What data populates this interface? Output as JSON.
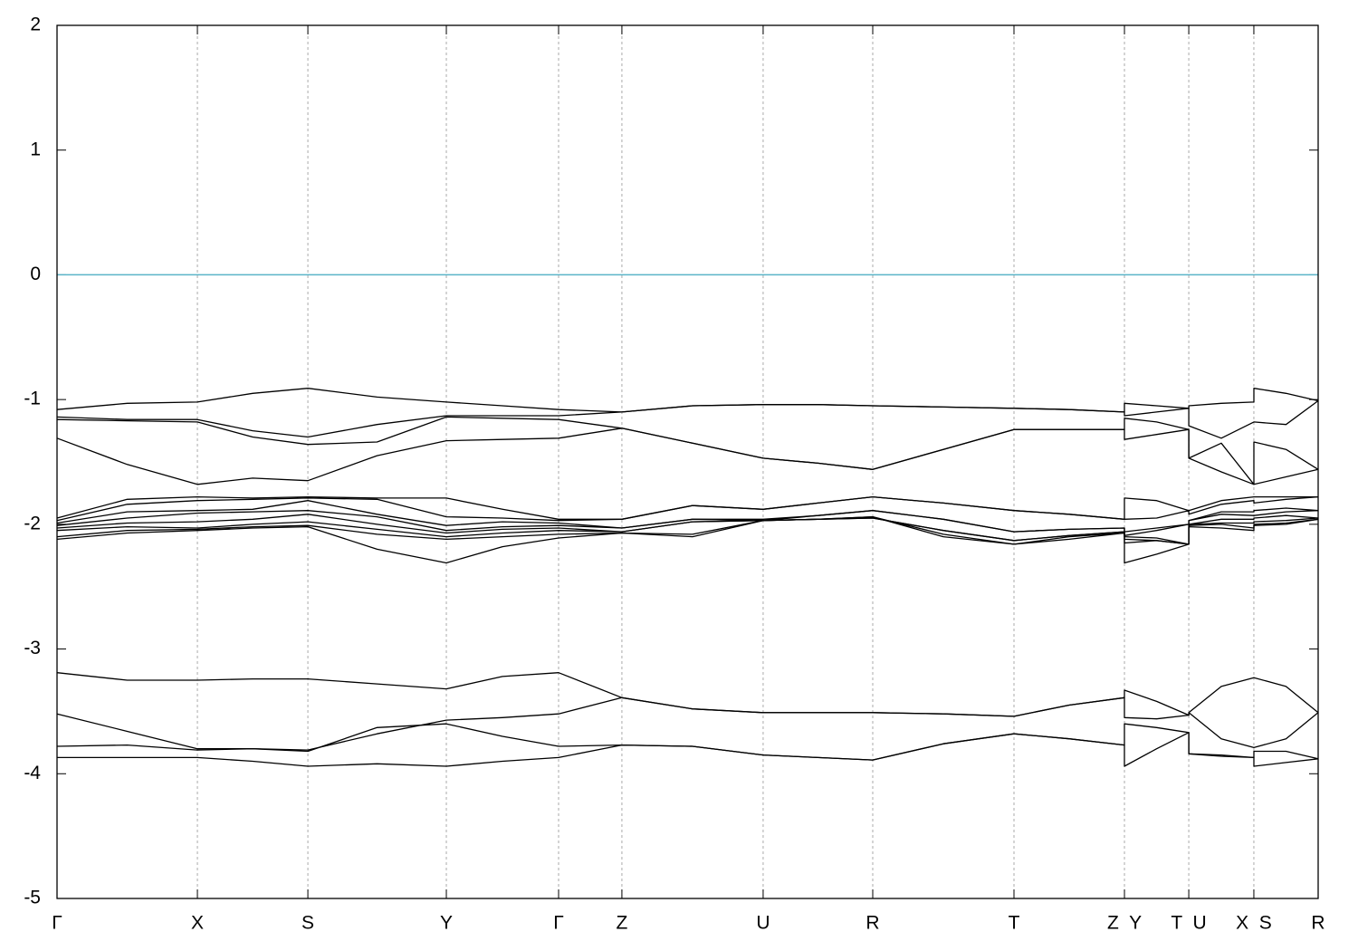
{
  "chart_data": {
    "type": "line",
    "x": [
      0,
      0.556,
      1.113,
      1.551,
      1.989,
      2.538,
      3.087,
      3.532,
      3.977,
      4.479,
      5.039,
      5.599,
      6.034,
      6.468,
      7.028,
      7.588,
      8.026,
      8.464,
      8.464,
      8.719,
      8.974,
      8.974,
      9.232,
      9.49,
      9.49,
      9.745,
      10
    ],
    "xlim": [
      0,
      10
    ],
    "xticks": [
      {
        "value": 0,
        "label": "Γ"
      },
      {
        "value": 1.113,
        "label": "X"
      },
      {
        "value": 1.989,
        "label": "S"
      },
      {
        "value": 3.087,
        "label": "Y"
      },
      {
        "value": 3.977,
        "label": "Γ"
      },
      {
        "value": 4.479,
        "label": "Z"
      },
      {
        "value": 5.599,
        "label": "U"
      },
      {
        "value": 6.468,
        "label": "R"
      },
      {
        "value": 7.588,
        "label": "T"
      },
      {
        "value": 8.464,
        "label": "Z  Y"
      },
      {
        "value": 8.974,
        "label": "T  U"
      },
      {
        "value": 9.49,
        "label": "X  S"
      },
      {
        "value": 10,
        "label": "R"
      }
    ],
    "ylim": [
      -5,
      2
    ],
    "yticks": [
      -5,
      -4,
      -3,
      -2,
      -1,
      0,
      1,
      2
    ],
    "xgrid": true,
    "hline": {
      "value": 0,
      "color": "#5ab4c8"
    },
    "series": [
      {
        "color": "#000000",
        "values": [
          -1.08,
          -1.03,
          -1.02,
          -0.95,
          -0.91,
          -0.98,
          -1.02,
          -1.05,
          -1.08,
          -1.1,
          -1.05,
          -1.04,
          -1.04,
          -1.05,
          -1.06,
          -1.07,
          -1.08,
          -1.1,
          -1.03,
          -1.05,
          -1.07,
          -1.05,
          -1.03,
          -1.02,
          -0.91,
          -0.95,
          -1.01
        ]
      },
      {
        "color": "#000000",
        "values": [
          -1.14,
          -1.16,
          -1.16,
          -1.25,
          -1.3,
          -1.2,
          -1.13,
          -1.13,
          -1.13,
          -1.1,
          -1.05,
          -1.04,
          -1.04,
          -1.05,
          -1.06,
          -1.07,
          -1.08,
          -1.1,
          -1.13,
          -1.1,
          -1.07,
          -1.21,
          -1.31,
          -1.18,
          -1.18,
          -1.2,
          -1.01
        ]
      },
      {
        "color": "#000000",
        "values": [
          -1.16,
          -1.17,
          -1.18,
          -1.3,
          -1.36,
          -1.34,
          -1.14,
          -1.15,
          -1.16,
          -1.23,
          -1.35,
          -1.47,
          -1.51,
          -1.56,
          -1.4,
          -1.24,
          -1.24,
          -1.24,
          -1.15,
          -1.18,
          -1.24,
          -1.47,
          -1.35,
          -1.68,
          -1.34,
          -1.4,
          -1.56
        ]
      },
      {
        "color": "#000000",
        "values": [
          -1.31,
          -1.52,
          -1.68,
          -1.63,
          -1.65,
          -1.45,
          -1.33,
          -1.32,
          -1.31,
          -1.23,
          -1.35,
          -1.47,
          -1.51,
          -1.56,
          -1.4,
          -1.24,
          -1.24,
          -1.24,
          -1.32,
          -1.28,
          -1.24,
          -1.47,
          -1.58,
          -1.68,
          -1.68,
          -1.62,
          -1.56
        ]
      },
      {
        "color": "#000000",
        "values": [
          -1.95,
          -1.8,
          -1.78,
          -1.79,
          -1.78,
          -1.79,
          -1.79,
          -1.88,
          -1.96,
          -1.96,
          -1.85,
          -1.88,
          -1.83,
          -1.78,
          -1.83,
          -1.89,
          -1.92,
          -1.96,
          -1.79,
          -1.81,
          -1.89,
          -1.89,
          -1.81,
          -1.78,
          -1.78,
          -1.78,
          -1.78
        ]
      },
      {
        "color": "#000000",
        "values": [
          -1.97,
          -1.84,
          -1.81,
          -1.8,
          -1.79,
          -1.8,
          -1.94,
          -1.95,
          -1.97,
          -1.96,
          -1.85,
          -1.88,
          -1.83,
          -1.78,
          -1.83,
          -1.89,
          -1.92,
          -1.96,
          -1.96,
          -1.95,
          -1.89,
          -1.92,
          -1.84,
          -1.81,
          -1.83,
          -1.8,
          -1.78
        ]
      },
      {
        "color": "#000000",
        "values": [
          -1.99,
          -1.9,
          -1.89,
          -1.88,
          -1.81,
          -1.92,
          -2.01,
          -1.98,
          -1.99,
          -2.03,
          -1.96,
          -1.96,
          -1.93,
          -1.89,
          -1.96,
          -2.06,
          -2.04,
          -2.03,
          -2.06,
          -2.03,
          -2.0,
          -1.97,
          -1.9,
          -1.9,
          -1.89,
          -1.87,
          -1.89
        ]
      },
      {
        "color": "#000000",
        "values": [
          -2.01,
          -1.95,
          -1.91,
          -1.9,
          -1.89,
          -1.94,
          -2.05,
          -2.02,
          -2.01,
          -2.03,
          -1.96,
          -1.97,
          -1.93,
          -1.89,
          -1.96,
          -2.06,
          -2.04,
          -2.03,
          -2.09,
          -2.05,
          -2.0,
          -1.97,
          -1.92,
          -1.93,
          -1.93,
          -1.9,
          -1.89
        ]
      },
      {
        "color": "#000000",
        "values": [
          -2.03,
          -1.99,
          -1.98,
          -1.96,
          -1.92,
          -2.0,
          -2.07,
          -2.04,
          -2.03,
          -2.06,
          -1.98,
          -1.97,
          -1.96,
          -1.95,
          -2.05,
          -2.13,
          -2.09,
          -2.06,
          -2.1,
          -2.11,
          -2.16,
          -2.0,
          -1.96,
          -1.96,
          -1.95,
          -1.93,
          -1.95
        ]
      },
      {
        "color": "#000000",
        "values": [
          -2.05,
          -2.02,
          -2.03,
          -2.0,
          -1.98,
          -2.04,
          -2.1,
          -2.07,
          -2.05,
          -2.06,
          -1.98,
          -1.97,
          -1.96,
          -1.95,
          -2.05,
          -2.13,
          -2.09,
          -2.06,
          -2.12,
          -2.13,
          -2.16,
          -2.0,
          -1.99,
          -1.99,
          -1.98,
          -1.97,
          -1.95
        ]
      },
      {
        "color": "#000000",
        "values": [
          -2.1,
          -2.05,
          -2.04,
          -2.02,
          -2.01,
          -2.08,
          -2.12,
          -2.1,
          -2.08,
          -2.07,
          -2.08,
          -1.97,
          -1.96,
          -1.94,
          -2.08,
          -2.16,
          -2.1,
          -2.07,
          -2.15,
          -2.13,
          -2.16,
          -2.01,
          -2.0,
          -2.03,
          -2.0,
          -1.99,
          -1.96
        ]
      },
      {
        "color": "#000000",
        "values": [
          -2.12,
          -2.07,
          -2.05,
          -2.03,
          -2.02,
          -2.2,
          -2.31,
          -2.18,
          -2.11,
          -2.07,
          -2.1,
          -1.97,
          -1.96,
          -1.94,
          -2.1,
          -2.16,
          -2.12,
          -2.07,
          -2.31,
          -2.24,
          -2.16,
          -2.02,
          -2.03,
          -2.05,
          -2.01,
          -2.0,
          -1.96
        ]
      },
      {
        "color": "#000000",
        "values": [
          -3.19,
          -3.25,
          -3.25,
          -3.24,
          -3.24,
          -3.28,
          -3.32,
          -3.22,
          -3.19,
          -3.39,
          -3.48,
          -3.51,
          -3.51,
          -3.51,
          -3.52,
          -3.54,
          -3.45,
          -3.39,
          -3.33,
          -3.42,
          -3.53,
          -3.51,
          -3.3,
          -3.23,
          -3.23,
          -3.3,
          -3.51
        ]
      },
      {
        "color": "#000000",
        "values": [
          -3.52,
          -3.66,
          -3.8,
          -3.8,
          -3.81,
          -3.68,
          -3.57,
          -3.55,
          -3.52,
          -3.39,
          -3.48,
          -3.51,
          -3.51,
          -3.51,
          -3.52,
          -3.54,
          -3.45,
          -3.39,
          -3.55,
          -3.56,
          -3.53,
          -3.51,
          -3.72,
          -3.79,
          -3.79,
          -3.72,
          -3.51
        ]
      },
      {
        "color": "#000000",
        "values": [
          -3.78,
          -3.77,
          -3.81,
          -3.8,
          -3.82,
          -3.63,
          -3.6,
          -3.7,
          -3.78,
          -3.77,
          -3.78,
          -3.85,
          -3.87,
          -3.89,
          -3.76,
          -3.68,
          -3.72,
          -3.77,
          -3.6,
          -3.63,
          -3.67,
          -3.84,
          -3.85,
          -3.87,
          -3.82,
          -3.82,
          -3.88
        ]
      },
      {
        "color": "#000000",
        "values": [
          -3.87,
          -3.87,
          -3.87,
          -3.9,
          -3.94,
          -3.92,
          -3.94,
          -3.9,
          -3.87,
          -3.77,
          -3.78,
          -3.85,
          -3.87,
          -3.89,
          -3.76,
          -3.68,
          -3.72,
          -3.77,
          -3.94,
          -3.8,
          -3.67,
          -3.84,
          -3.86,
          -3.87,
          -3.94,
          -3.91,
          -3.88
        ]
      }
    ]
  }
}
